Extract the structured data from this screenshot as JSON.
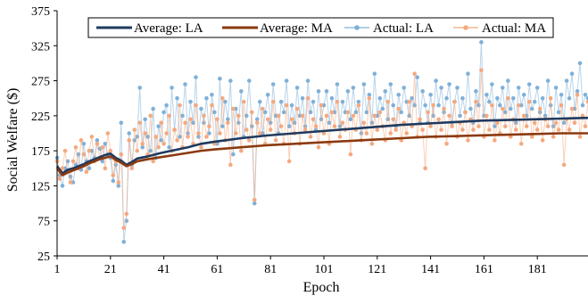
{
  "chart_data": {
    "type": "line",
    "xlabel": "Epoch",
    "ylabel": "Social Welfare ($)",
    "xlim": [
      1,
      200
    ],
    "ylim": [
      25,
      375
    ],
    "x_ticks": [
      1,
      21,
      41,
      61,
      81,
      101,
      121,
      141,
      161,
      181
    ],
    "y_ticks": [
      25,
      75,
      125,
      175,
      225,
      275,
      325,
      375
    ],
    "grid": false,
    "legend_position": "top-center",
    "series": [
      {
        "name": "Average: LA",
        "style": "line",
        "color": "#1f3a5f",
        "x": [
          1,
          3,
          5,
          7,
          9,
          11,
          13,
          15,
          17,
          19,
          21,
          23,
          25,
          27,
          29,
          31,
          35,
          40,
          45,
          50,
          55,
          60,
          70,
          80,
          90,
          100,
          110,
          120,
          130,
          140,
          150,
          160,
          170,
          180,
          190,
          200
        ],
        "y": [
          153,
          143,
          148,
          150,
          153,
          156,
          160,
          163,
          166,
          169,
          171,
          165,
          161,
          155,
          159,
          164,
          167,
          172,
          176,
          180,
          185,
          188,
          193,
          197,
          200,
          203,
          206,
          209,
          212,
          214,
          216,
          218,
          219,
          220,
          221,
          222
        ]
      },
      {
        "name": "Average: MA",
        "style": "line",
        "color": "#8b3a0f",
        "x": [
          1,
          3,
          5,
          7,
          9,
          11,
          13,
          15,
          17,
          19,
          21,
          23,
          25,
          27,
          29,
          31,
          35,
          40,
          45,
          50,
          55,
          60,
          70,
          80,
          90,
          100,
          110,
          120,
          130,
          140,
          150,
          160,
          170,
          180,
          190,
          200
        ],
        "y": [
          150,
          140,
          144,
          147,
          150,
          153,
          157,
          160,
          163,
          165,
          167,
          162,
          158,
          153,
          156,
          160,
          163,
          166,
          169,
          172,
          175,
          177,
          180,
          183,
          185,
          187,
          189,
          191,
          193,
          195,
          196,
          197,
          198,
          199,
          200,
          200
        ]
      },
      {
        "name": "Actual: LA",
        "style": "line-markers",
        "color": "#7fb0d8",
        "x": [
          1,
          2,
          3,
          4,
          5,
          6,
          7,
          8,
          9,
          10,
          11,
          12,
          13,
          14,
          15,
          16,
          17,
          18,
          19,
          20,
          21,
          22,
          23,
          24,
          25,
          26,
          27,
          28,
          29,
          30,
          31,
          32,
          33,
          34,
          35,
          36,
          37,
          38,
          39,
          40,
          41,
          42,
          43,
          44,
          45,
          46,
          47,
          48,
          49,
          50,
          51,
          52,
          53,
          54,
          55,
          56,
          57,
          58,
          59,
          60,
          61,
          62,
          63,
          64,
          65,
          66,
          67,
          68,
          69,
          70,
          71,
          72,
          73,
          74,
          75,
          76,
          77,
          78,
          79,
          80,
          81,
          82,
          83,
          84,
          85,
          86,
          87,
          88,
          89,
          90,
          91,
          92,
          93,
          94,
          95,
          96,
          97,
          98,
          99,
          100,
          101,
          102,
          103,
          104,
          105,
          106,
          107,
          108,
          109,
          110,
          111,
          112,
          113,
          114,
          115,
          116,
          117,
          118,
          119,
          120,
          121,
          122,
          123,
          124,
          125,
          126,
          127,
          128,
          129,
          130,
          131,
          132,
          133,
          134,
          135,
          136,
          137,
          138,
          139,
          140,
          141,
          142,
          143,
          144,
          145,
          146,
          147,
          148,
          149,
          150,
          151,
          152,
          153,
          154,
          155,
          156,
          157,
          158,
          159,
          160,
          161,
          162,
          163,
          164,
          165,
          166,
          167,
          168,
          169,
          170,
          171,
          172,
          173,
          174,
          175,
          176,
          177,
          178,
          179,
          180,
          181,
          182,
          183,
          184,
          185,
          186,
          187,
          188,
          189,
          190,
          191,
          192,
          193,
          194,
          195,
          196,
          197,
          198,
          199,
          200
        ],
        "y": [
          165,
          140,
          125,
          150,
          160,
          138,
          130,
          155,
          170,
          148,
          185,
          160,
          150,
          175,
          165,
          190,
          178,
          160,
          185,
          170,
          165,
          132,
          155,
          125,
          215,
          45,
          75,
          200,
          155,
          190,
          195,
          265,
          180,
          220,
          195,
          175,
          235,
          165,
          210,
          190,
          230,
          240,
          180,
          265,
          205,
          250,
          195,
          225,
          270,
          200,
          245,
          215,
          280,
          195,
          235,
          215,
          250,
          200,
          255,
          230,
          185,
          278,
          210,
          245,
          220,
          275,
          170,
          235,
          215,
          260,
          195,
          225,
          275,
          210,
          100,
          220,
          245,
          200,
          230,
          255,
          215,
          270,
          225,
          200,
          245,
          230,
          275,
          210,
          240,
          215,
          265,
          225,
          250,
          210,
          275,
          230,
          245,
          205,
          260,
          220,
          240,
          260,
          215,
          250,
          230,
          270,
          210,
          245,
          230,
          260,
          220,
          265,
          230,
          245,
          200,
          270,
          230,
          255,
          215,
          285,
          225,
          250,
          235,
          260,
          220,
          270,
          240,
          210,
          255,
          230,
          265,
          245,
          225,
          250,
          240,
          280,
          215,
          260,
          240,
          215,
          255,
          225,
          275,
          240,
          265,
          230,
          250,
          270,
          215,
          245,
          265,
          225,
          250,
          230,
          285,
          235,
          215,
          260,
          240,
          330,
          225,
          255,
          245,
          270,
          210,
          250,
          240,
          265,
          230,
          275,
          235,
          250,
          215,
          265,
          240,
          255,
          225,
          270,
          235,
          245,
          265,
          230,
          250,
          225,
          275,
          240,
          210,
          265,
          230,
          255,
          215,
          275,
          250,
          285,
          235,
          260,
          300,
          240,
          255,
          250
        ]
      },
      {
        "name": "Actual: MA",
        "style": "line-markers",
        "color": "#f4a97f",
        "x": [
          1,
          2,
          3,
          4,
          5,
          6,
          7,
          8,
          9,
          10,
          11,
          12,
          13,
          14,
          15,
          16,
          17,
          18,
          19,
          20,
          21,
          22,
          23,
          24,
          25,
          26,
          27,
          28,
          29,
          30,
          31,
          32,
          33,
          34,
          35,
          36,
          37,
          38,
          39,
          40,
          41,
          42,
          43,
          44,
          45,
          46,
          47,
          48,
          49,
          50,
          51,
          52,
          53,
          54,
          55,
          56,
          57,
          58,
          59,
          60,
          61,
          62,
          63,
          64,
          65,
          66,
          67,
          68,
          69,
          70,
          71,
          72,
          73,
          74,
          75,
          76,
          77,
          78,
          79,
          80,
          81,
          82,
          83,
          84,
          85,
          86,
          87,
          88,
          89,
          90,
          91,
          92,
          93,
          94,
          95,
          96,
          97,
          98,
          99,
          100,
          101,
          102,
          103,
          104,
          105,
          106,
          107,
          108,
          109,
          110,
          111,
          112,
          113,
          114,
          115,
          116,
          117,
          118,
          119,
          120,
          121,
          122,
          123,
          124,
          125,
          126,
          127,
          128,
          129,
          130,
          131,
          132,
          133,
          134,
          135,
          136,
          137,
          138,
          139,
          140,
          141,
          142,
          143,
          144,
          145,
          146,
          147,
          148,
          149,
          150,
          151,
          152,
          153,
          154,
          155,
          156,
          157,
          158,
          159,
          160,
          161,
          162,
          163,
          164,
          165,
          166,
          167,
          168,
          169,
          170,
          171,
          172,
          173,
          174,
          175,
          176,
          177,
          178,
          179,
          180,
          181,
          182,
          183,
          184,
          185,
          186,
          187,
          188,
          189,
          190,
          191,
          192,
          193,
          194,
          195,
          196,
          197,
          198,
          199,
          200
        ],
        "y": [
          160,
          135,
          150,
          175,
          145,
          130,
          160,
          180,
          150,
          190,
          170,
          145,
          175,
          195,
          160,
          185,
          165,
          180,
          150,
          200,
          175,
          140,
          160,
          130,
          170,
          65,
          85,
          190,
          150,
          205,
          175,
          215,
          185,
          200,
          170,
          225,
          160,
          195,
          180,
          215,
          185,
          200,
          225,
          175,
          205,
          190,
          240,
          180,
          215,
          195,
          220,
          185,
          240,
          200,
          180,
          225,
          195,
          210,
          240,
          185,
          220,
          200,
          250,
          190,
          215,
          155,
          235,
          200,
          225,
          175,
          245,
          205,
          190,
          230,
          105,
          215,
          200,
          235,
          185,
          220,
          205,
          245,
          190,
          225,
          210,
          185,
          240,
          160,
          220,
          200,
          235,
          185,
          225,
          205,
          250,
          195,
          220,
          210,
          180,
          240,
          200,
          225,
          185,
          230,
          210,
          245,
          195,
          215,
          205,
          230,
          170,
          225,
          205,
          240,
          190,
          215,
          200,
          250,
          185,
          225,
          205,
          230,
          210,
          190,
          245,
          200,
          220,
          205,
          235,
          190,
          215,
          200,
          245,
          210,
          285,
          195,
          220,
          205,
          150,
          230,
          210,
          240,
          195,
          220,
          205,
          235,
          185,
          225,
          210,
          245,
          195,
          215,
          205,
          230,
          190,
          220,
          205,
          245,
          210,
          290,
          195,
          225,
          205,
          240,
          190,
          215,
          200,
          235,
          210,
          250,
          195,
          220,
          205,
          240,
          185,
          225,
          210,
          245,
          195,
          215,
          205,
          235,
          190,
          220,
          210,
          250,
          195,
          215,
          205,
          240,
          155,
          220,
          205,
          235,
          215,
          255,
          195,
          225,
          210,
          245
        ]
      }
    ]
  }
}
